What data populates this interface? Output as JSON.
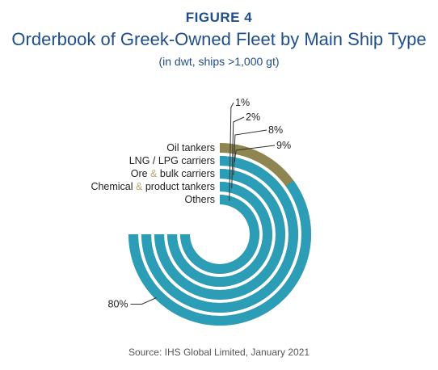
{
  "figure_label": "FIGURE 4",
  "title": "Orderbook of Greek-Owned Fleet by Main Ship Type",
  "subtitle": "(in dwt, ships >1,000 gt)",
  "source": "Source: IHS Global Limited, January 2021",
  "colors": {
    "track": "#8f8550",
    "value": "#2b9db6",
    "text": "#1f4e8c"
  },
  "chart_data": {
    "type": "radial-bar",
    "title": "Orderbook of Greek-Owned Fleet by Main Ship Type",
    "subtitle": "(in dwt, ships >1,000 gt)",
    "categories": [
      {
        "pre": "Oil tankers",
        "amp": "",
        "post": ""
      },
      {
        "pre": "LNG / LPG carriers",
        "amp": "",
        "post": ""
      },
      {
        "pre": "Ore ",
        "amp": "&",
        "post": " bulk carriers"
      },
      {
        "pre": "Chemical ",
        "amp": "&",
        "post": " product tankers"
      },
      {
        "pre": "Others",
        "amp": "",
        "post": ""
      }
    ],
    "values": [
      80,
      9,
      8,
      2,
      1
    ],
    "value_labels": [
      "80%",
      "9%",
      "8%",
      "2%",
      "1%"
    ]
  }
}
